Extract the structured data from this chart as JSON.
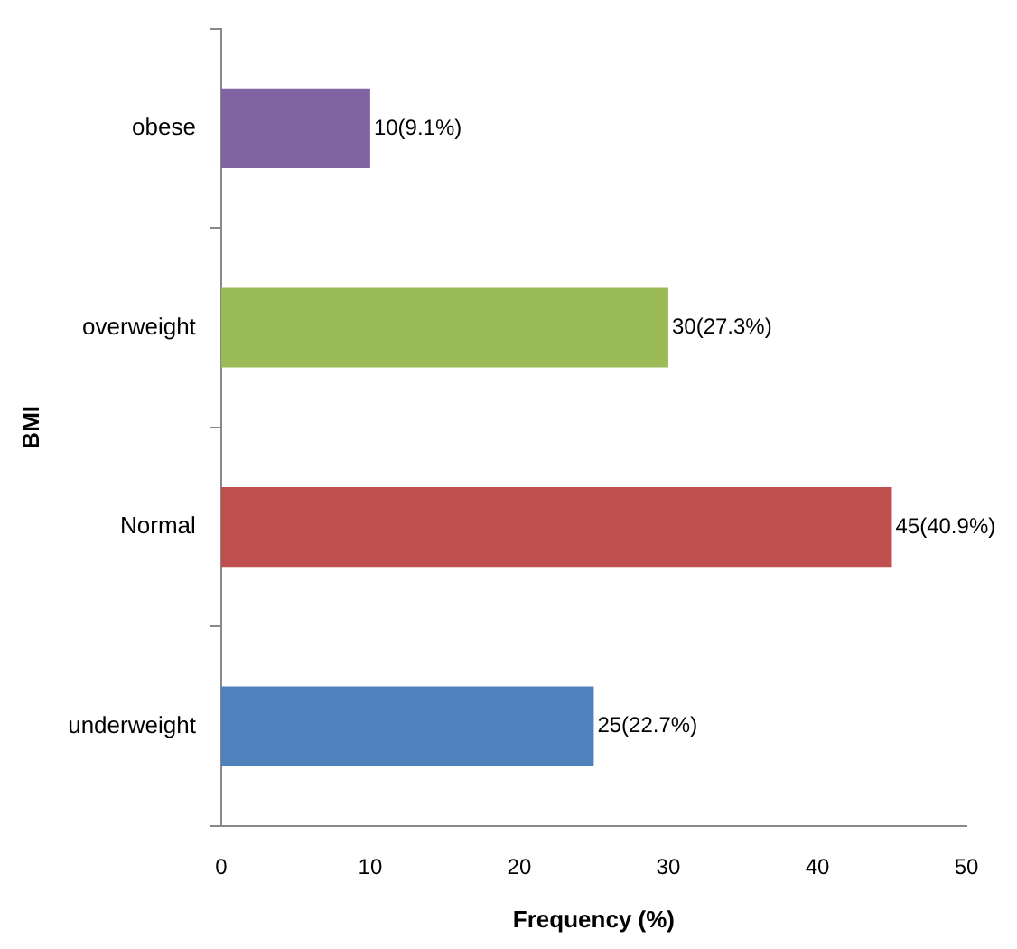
{
  "chart_data": {
    "type": "bar",
    "orientation": "horizontal",
    "categories": [
      "obese",
      "overweight",
      "Normal",
      "underweight"
    ],
    "values": [
      10,
      30,
      45,
      25
    ],
    "colors": [
      "#8064a2",
      "#9bbb59",
      "#c0504d",
      "#4f81bd"
    ],
    "value_labels": [
      "10(9.1%)",
      "30(27.3%)",
      "45(40.9%)",
      "25(22.7%)"
    ],
    "xlim": [
      0,
      50
    ],
    "xticks": [
      0,
      10,
      20,
      30,
      40,
      50
    ],
    "xlabel": "Frequency (%)",
    "ylabel": "BMI",
    "grid": false,
    "legend": false
  }
}
